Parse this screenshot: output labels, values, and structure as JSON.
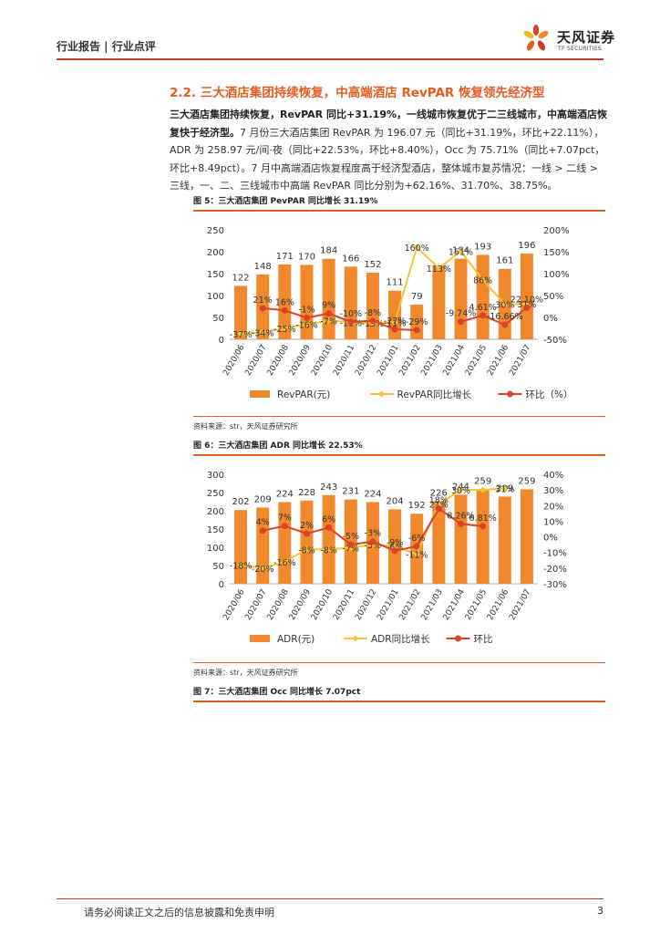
{
  "header": {
    "breadcrumb": "行业报告 | 行业点评"
  },
  "logo": {
    "name_cn": "天风证券",
    "name_en": "TF SECURITIES"
  },
  "section": {
    "title": "2.2. 三大酒店集团持续恢复，中高端酒店 RevPAR 恢复领先经济型",
    "para_bold": "三大酒店集团持续恢复，RevPAR 同比+31.19%，一线城市恢复优于二三线城市，中高端酒店恢复快于经济型。",
    "para_text": "7 月份三大酒店集团 RevPAR 为 196.07 元（同比+31.19%，环比+22.11%），ADR 为 258.97 元/间·夜（同比+22.53%，环比+8.40%），Occ 为 75.71%（同比+7.07pct，环比+8.49pct）。7 月中高端酒店恢复程度高于经济型酒店，整体城市复苏情况：一线 > 二线 > 三线，一、二、三线城市中高端 RevPAR 同比分别为+62.16%、31.70%、38.75%。"
  },
  "figures": {
    "fig5_title": "图 5：三大酒店集团 PevPAR 同比增长 31.19%",
    "fig6_title": "图 6：三大酒店集团 ADR 同比增长 22.53%",
    "fig7_title": "图 7：三大酒店集团 Occ 同比增长 7.07pct",
    "source_text": "资料来源：str，天风证券研究所"
  },
  "footer": {
    "disclaimer": "请务必阅读正文之后的信息披露和免责申明",
    "page": "3"
  },
  "colors": {
    "bar": "#f0892c",
    "yoy_line": "#f6c338",
    "mom_line": "#d9432b",
    "accent": "#e45c21"
  },
  "chart_data": [
    {
      "type": "bar",
      "categories": [
        "2020/06",
        "2020/07",
        "2020/08",
        "2020/09",
        "2020/10",
        "2020/11",
        "2020/12",
        "2021/01",
        "2021/02",
        "2021/03",
        "2021/04",
        "2021/05",
        "2021/06",
        "2021/07"
      ],
      "series": [
        {
          "name": "RevPAR(元)",
          "kind": "bar",
          "axis": "left",
          "values": [
            122,
            148,
            171,
            170,
            184,
            166,
            152,
            111,
            79,
            168,
            184,
            193,
            161,
            196
          ],
          "labels": [
            "122",
            "148",
            "171",
            "170",
            "184",
            "166",
            "152",
            "111",
            "79",
            "",
            "184",
            "193",
            "161",
            "196"
          ]
        },
        {
          "name": "RevPAR同比增长",
          "kind": "line",
          "axis": "right",
          "values": [
            -37,
            -34,
            -25,
            -16,
            -7,
            -11,
            -13,
            -11,
            160,
            113,
            151,
            86,
            30,
            31
          ],
          "labels": [
            "-37%",
            "-34%",
            "-25%",
            "-16%",
            "-7%",
            "-11%",
            "-13%",
            "-11%",
            "160%",
            "113%",
            "151%",
            "86%",
            "30%",
            "31%"
          ]
        },
        {
          "name": "环比（%）",
          "kind": "line",
          "axis": "right",
          "values": [
            null,
            21,
            16,
            -1,
            9,
            -10,
            -8,
            -27,
            -29,
            null,
            -9.74,
            4.61,
            -16.66,
            22.1
          ],
          "labels": [
            "",
            "21%",
            "16%",
            "-1%",
            "9%",
            "-10%",
            "-8%",
            "-27%",
            "-29%",
            "",
            "-9.74%",
            "4.61%",
            "-16.66%",
            "22.10%"
          ]
        }
      ],
      "ylim_left": [
        0,
        250
      ],
      "yticks_left": [
        0,
        50,
        100,
        150,
        200,
        250
      ],
      "ylim_right": [
        -50,
        200
      ],
      "yticks_right": [
        "-50%",
        "0%",
        "50%",
        "100%",
        "150%",
        "200%"
      ],
      "grid": false,
      "legend": "bottom"
    },
    {
      "type": "bar",
      "categories": [
        "2020/06",
        "2020/07",
        "2020/08",
        "2020/09",
        "2020/10",
        "2020/11",
        "2020/12",
        "2021/01",
        "2021/02",
        "2021/03",
        "2021/04",
        "2021/05",
        "2021/06",
        "2021/07"
      ],
      "series": [
        {
          "name": "ADR(元)",
          "kind": "bar",
          "axis": "left",
          "values": [
            202,
            209,
            224,
            228,
            243,
            231,
            224,
            204,
            192,
            226,
            244,
            259,
            239,
            259
          ],
          "labels": [
            "202",
            "209",
            "224",
            "228",
            "243",
            "231",
            "224",
            "204",
            "192",
            "226",
            "244",
            "259",
            "239",
            "259"
          ]
        },
        {
          "name": "ADR同比增长",
          "kind": "line",
          "axis": "right",
          "values": [
            -18,
            -20,
            -16,
            -8,
            -8,
            -7,
            -5,
            -6,
            -11,
            21,
            30,
            30,
            31,
            null
          ],
          "labels": [
            "-18%",
            "-20%",
            "-16%",
            "-8%",
            "-8%",
            "-7%",
            "-5%",
            "-6%",
            "-11%",
            "21%",
            "30%",
            "",
            "31%",
            ""
          ]
        },
        {
          "name": "环比",
          "kind": "line",
          "axis": "right",
          "values": [
            null,
            4,
            7,
            2,
            6,
            -5,
            -3,
            -9,
            -6,
            18,
            8.26,
            6.81,
            null,
            null
          ],
          "labels": [
            "",
            "4%",
            "7%",
            "2%",
            "6%",
            "-5%",
            "-3%",
            "-9%",
            "-6%",
            "18%",
            "8.26%",
            "6.81%",
            "",
            ""
          ]
        }
      ],
      "ylim_left": [
        0,
        300
      ],
      "yticks_left": [
        0,
        50,
        100,
        150,
        200,
        250,
        300
      ],
      "ylim_right": [
        -30,
        40
      ],
      "yticks_right": [
        "-30%",
        "-20%",
        "-10%",
        "0%",
        "10%",
        "20%",
        "30%",
        "40%"
      ],
      "grid": false,
      "legend": "bottom"
    }
  ]
}
